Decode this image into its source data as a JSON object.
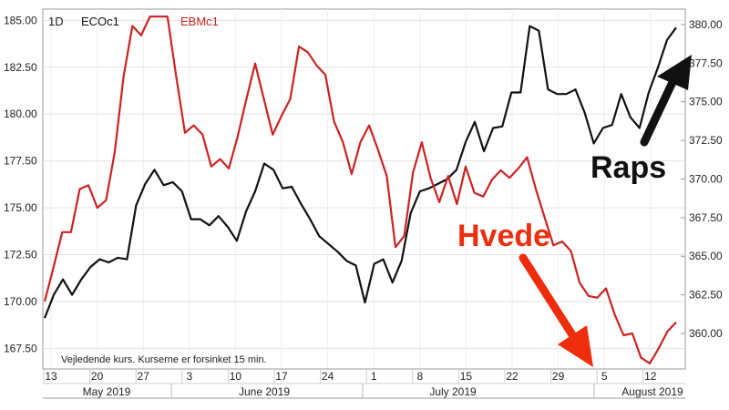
{
  "chart_data": {
    "type": "line",
    "interval": "1D",
    "note": "Vejledende kurs. Kurserne er forsinket 15 min.",
    "x_tick_labels": [
      "13",
      "20",
      "27",
      "3",
      "10",
      "17",
      "24",
      "1",
      "8",
      "15",
      "22",
      "29",
      "5",
      "12"
    ],
    "month_labels": [
      "May 2019",
      "June 2019",
      "July 2019",
      "August 2019"
    ],
    "left_axis": {
      "ticks": [
        "167.50",
        "170.00",
        "172.50",
        "175.00",
        "177.50",
        "180.00",
        "182.50",
        "185.00"
      ],
      "min": 166.4,
      "max": 185.6
    },
    "right_axis": {
      "ticks": [
        "360.00",
        "362.50",
        "365.00",
        "367.50",
        "370.00",
        "372.50",
        "375.00",
        "377.50",
        "380.00"
      ],
      "min": 357.7,
      "max": 381.0
    },
    "grid": true,
    "legend": "top-left",
    "series": [
      {
        "name": "ECOc1",
        "axis": "right",
        "color": "#111111",
        "values": [
          361.0,
          362.5,
          363.5,
          362.5,
          363.5,
          364.3,
          364.8,
          364.6,
          364.9,
          364.8,
          368.3,
          369.7,
          370.6,
          369.6,
          369.8,
          369.2,
          367.4,
          367.4,
          367.0,
          367.6,
          366.9,
          366.0,
          367.9,
          369.2,
          371.0,
          370.6,
          369.4,
          369.5,
          368.4,
          367.4,
          366.3,
          365.8,
          365.3,
          364.7,
          364.4,
          362.0,
          364.5,
          364.8,
          363.3,
          364.7,
          367.8,
          369.2,
          369.4,
          369.7,
          370.0,
          370.6,
          372.4,
          373.7,
          371.8,
          373.3,
          373.4,
          375.6,
          375.6,
          379.9,
          379.6,
          375.8,
          375.5,
          375.5,
          375.8,
          374.3,
          372.3,
          373.3,
          373.5,
          375.5,
          374.0,
          373.3,
          375.6,
          377.2,
          379.0,
          379.8
        ]
      },
      {
        "name": "EBMc1",
        "axis": "left",
        "color": "#cc2222",
        "values": [
          170.0,
          171.8,
          173.7,
          173.7,
          176.0,
          176.2,
          175.0,
          175.4,
          178.0,
          182.0,
          184.7,
          184.2,
          185.2,
          185.2,
          185.2,
          182.0,
          179.0,
          179.4,
          178.9,
          177.2,
          177.6,
          177.1,
          178.8,
          180.8,
          182.7,
          180.8,
          178.9,
          179.9,
          180.8,
          183.6,
          183.3,
          182.6,
          182.1,
          179.6,
          178.5,
          176.8,
          178.5,
          179.4,
          178.1,
          176.7,
          172.9,
          173.5,
          176.9,
          178.5,
          176.6,
          175.3,
          176.7,
          175.2,
          177.2,
          175.8,
          175.6,
          176.5,
          177.0,
          176.6,
          177.1,
          177.7,
          176.0,
          174.5,
          173.0,
          173.2,
          172.7,
          171.0,
          170.3,
          170.2,
          170.7,
          169.3,
          168.2,
          168.3,
          167.0,
          166.7,
          167.5,
          168.4,
          168.9
        ]
      }
    ],
    "annotations": [
      {
        "text": "Raps",
        "color": "#111111",
        "arrow": "up"
      },
      {
        "text": "Hvede",
        "color": "#ee2d0c",
        "arrow": "down"
      }
    ]
  }
}
